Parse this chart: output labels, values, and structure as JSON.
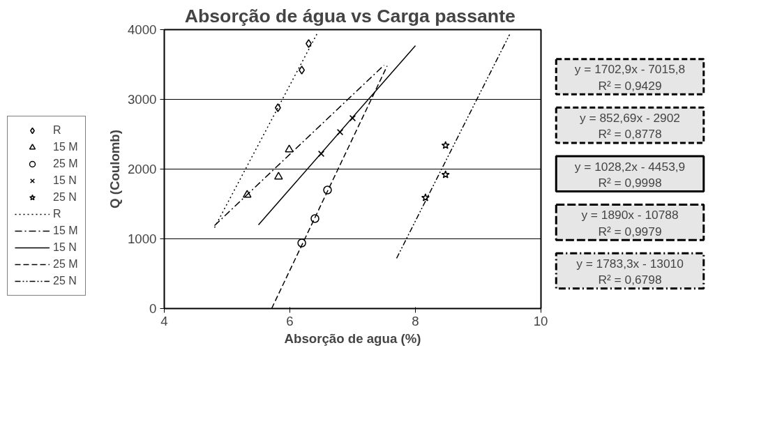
{
  "chart_data": {
    "type": "scatter",
    "title": "Absorção de água  vs Carga passante",
    "xlabel": "Absorção de agua (%)",
    "ylabel": "Q (Coulomb)",
    "xlim": [
      4,
      10
    ],
    "ylim": [
      0,
      4000
    ],
    "xticks": [
      4,
      6,
      8,
      10
    ],
    "yticks": [
      0,
      1000,
      2000,
      3000,
      4000
    ],
    "grid": "y",
    "legend": "left",
    "series": [
      {
        "name": "R",
        "color": "#000000",
        "marker": "diamond",
        "x": [
          5.81,
          6.19,
          6.3
        ],
        "values": [
          2880,
          3420,
          3800
        ]
      },
      {
        "name": "15 M",
        "color": "#000000",
        "marker": "triangle",
        "x": [
          5.32,
          5.82,
          5.99
        ],
        "values": [
          1630,
          1890,
          2280
        ]
      },
      {
        "name": "25 M",
        "color": "#000000",
        "marker": "circle",
        "x": [
          6.19,
          6.4,
          6.6
        ],
        "values": [
          940,
          1290,
          1700
        ]
      },
      {
        "name": "15 N",
        "color": "#000000",
        "marker": "cross",
        "x": [
          6.5,
          6.8,
          7.0
        ],
        "values": [
          2220,
          2530,
          2730
        ]
      },
      {
        "name": "25 N",
        "color": "#000000",
        "marker": "star",
        "x": [
          8.16,
          8.48,
          8.48
        ],
        "values": [
          1590,
          2340,
          1920
        ]
      },
      {
        "name": "R",
        "type": "line",
        "color": "#000000",
        "line_style": "dotted",
        "x": [
          4.8,
          6.45
        ],
        "values": [
          1160,
          3970
        ]
      },
      {
        "name": "15 M",
        "type": "line",
        "color": "#000000",
        "line_style": "dashdot",
        "x": [
          4.8,
          7.5
        ],
        "values": [
          1190,
          3490
        ]
      },
      {
        "name": "15 N",
        "type": "line",
        "color": "#000000",
        "line_style": "solid",
        "x": [
          5.5,
          8.0
        ],
        "values": [
          1200,
          3770
        ]
      },
      {
        "name": "25 M",
        "type": "line",
        "color": "#000000",
        "line_style": "dashed",
        "x": [
          5.71,
          7.55
        ],
        "values": [
          0,
          3480
        ]
      },
      {
        "name": "25 N",
        "type": "line",
        "color": "#000000",
        "line_style": "dashdotdot",
        "x": [
          7.7,
          9.5
        ],
        "values": [
          720,
          3930
        ]
      }
    ],
    "annotations": [
      "y = 1702,9x - 7015,8",
      "R² = 0,9429",
      "y = 852,69x - 2902",
      "R² = 0,8778",
      "y = 1028,2x - 4453,9",
      "R² = 0,9998",
      "y = 1890x - 10788",
      "R² = 0,9979",
      "y = 1783,3x - 13010",
      "R² = 0,6798"
    ]
  }
}
